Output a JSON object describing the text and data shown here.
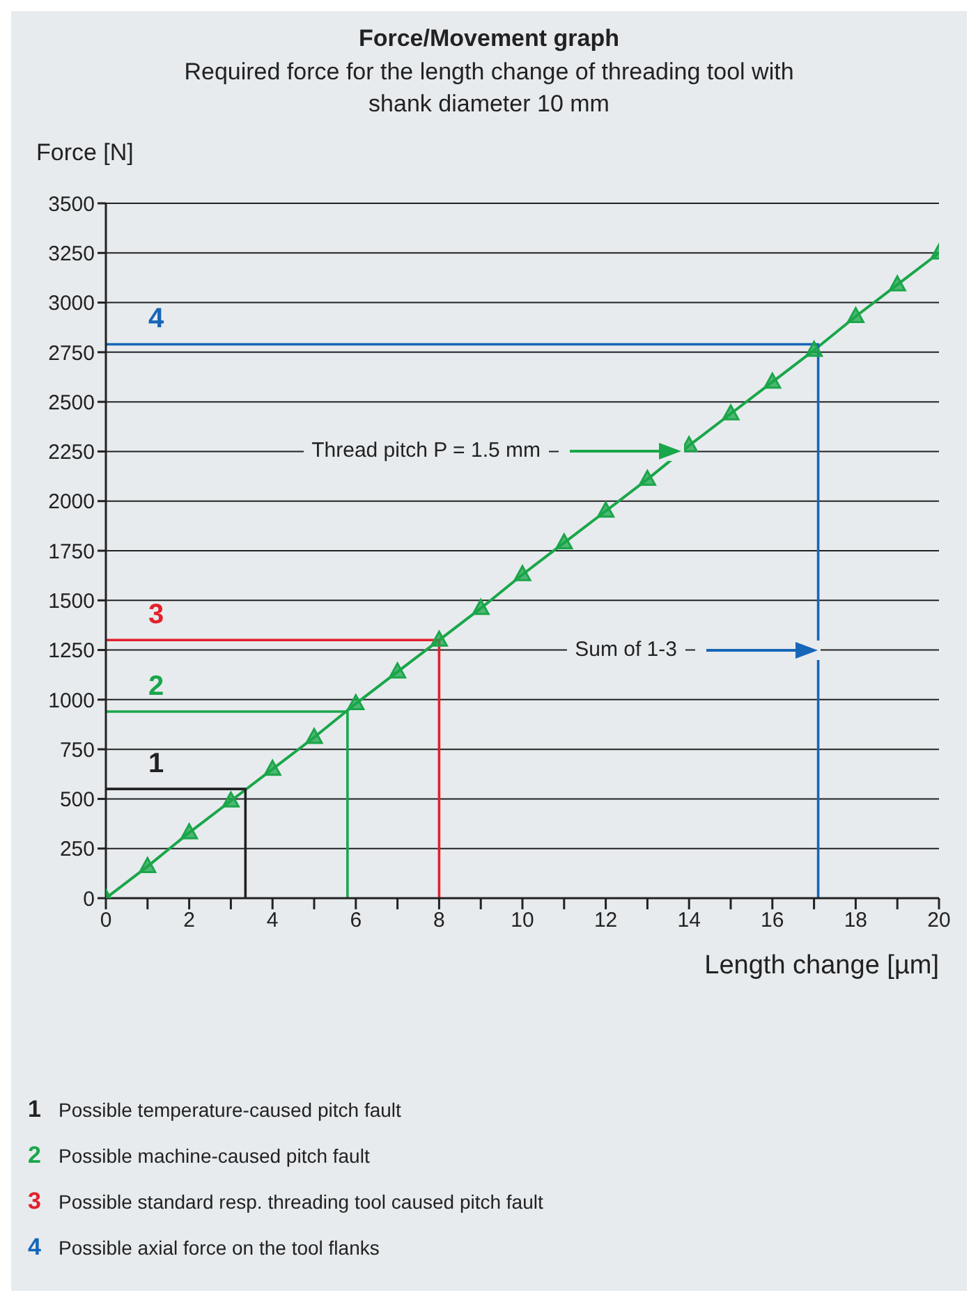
{
  "chart_data": {
    "type": "line",
    "title": "Force/Movement graph",
    "subtitle": "Required force for the length change of threading tool with shank diameter 10 mm",
    "xlabel": "Length change [µm]",
    "ylabel": "Force [N]",
    "x": [
      0,
      1,
      2,
      3,
      4,
      5,
      6,
      7,
      8,
      9,
      10,
      11,
      12,
      13,
      14,
      15,
      16,
      17,
      18,
      19,
      20
    ],
    "series": [
      {
        "color": "#1aa64a",
        "marker": "triangle",
        "values": [
          0,
          160,
          330,
          490,
          650,
          810,
          980,
          1140,
          1300,
          1460,
          1630,
          1790,
          1950,
          2110,
          2280,
          2440,
          2600,
          2760,
          2930,
          3090,
          3250
        ]
      },
      {
        "name": "1",
        "color": "#222222",
        "marker": "none",
        "x": [
          0,
          3.35,
          3.35
        ],
        "values": [
          550,
          550,
          0
        ]
      },
      {
        "name": "2",
        "color": "#1aa64a",
        "marker": "none",
        "x": [
          0,
          5.8,
          5.8
        ],
        "values": [
          940,
          940,
          0
        ]
      },
      {
        "name": "3",
        "color": "#e3202b",
        "marker": "none",
        "x": [
          0,
          8,
          8
        ],
        "values": [
          1300,
          1300,
          0
        ]
      },
      {
        "name": "4",
        "color": "#1666b8",
        "marker": "none",
        "x": [
          0,
          17.1,
          17.1
        ],
        "values": [
          2790,
          2790,
          0
        ]
      }
    ],
    "xlim": [
      0,
      20
    ],
    "ylim": [
      0,
      3500
    ],
    "xticks": [
      0,
      {
        "value": 1,
        "label": null
      },
      2,
      {
        "value": 3,
        "label": null
      },
      4,
      {
        "value": 5,
        "label": null
      },
      6,
      {
        "value": 7,
        "label": null
      },
      8,
      {
        "value": 9,
        "label": null
      },
      10,
      {
        "value": 11,
        "label": null
      },
      12,
      {
        "value": 13,
        "label": null
      },
      14,
      {
        "value": 15,
        "label": null
      },
      16,
      {
        "value": 17,
        "label": null
      },
      18,
      {
        "value": 19,
        "label": null
      },
      20
    ],
    "yticks": [
      0,
      250,
      500,
      750,
      1000,
      1250,
      1500,
      1750,
      2000,
      2250,
      2500,
      2750,
      3000,
      3250,
      3500
    ],
    "grid": "y",
    "line_style": "solid",
    "annotations": [
      "Thread pitch P = 1.5 mm",
      "Sum of 1-3",
      "Possible temperature-caused pitch fault",
      "Possible machine-caused pitch fault",
      "Possible standard resp. threading tool caused pitch fault",
      "Possible axial force on the tool flanks"
    ]
  }
}
